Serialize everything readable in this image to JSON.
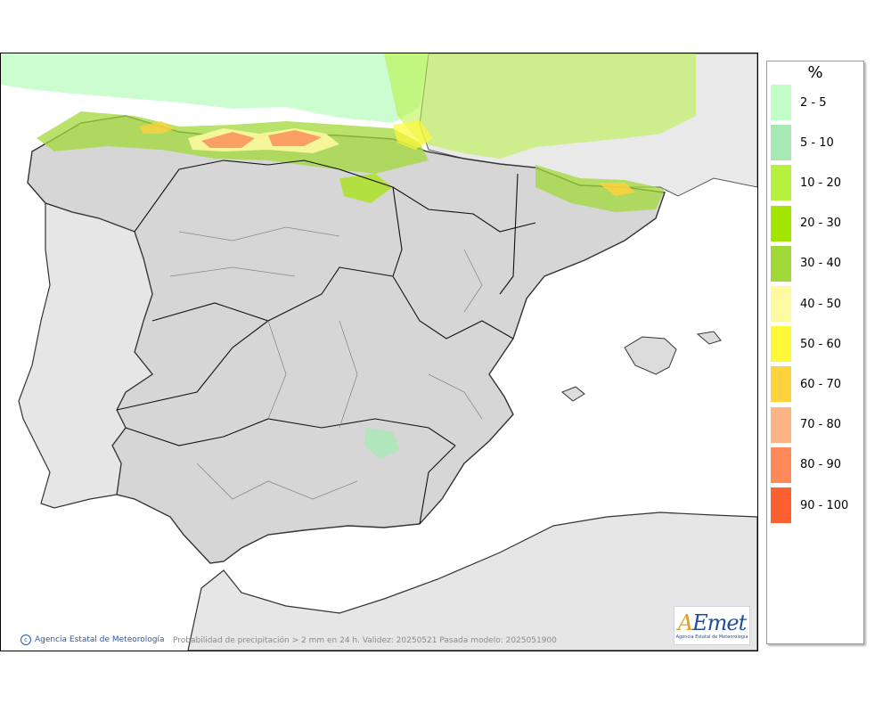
{
  "map": {
    "caption": "Probabilidad de precipitación > 2 mm en 24 h. Validez: 20250521 Pasada modelo: 2025051900",
    "credit": "Agencia Estatal de Meteorología",
    "logo": {
      "wordmark": "AEmet",
      "subtitle": "Agencia Estatal de Meteorología"
    },
    "land_color": "#d9d9d9",
    "sea_color": "#ffffff"
  },
  "legend": {
    "title": "%",
    "classes": [
      {
        "label": "2 - 5",
        "color": "#c3fdc8"
      },
      {
        "label": "5 - 10",
        "color": "#a8e8b4"
      },
      {
        "label": "10 - 20",
        "color": "#b8f040"
      },
      {
        "label": "20 - 30",
        "color": "#a3e400"
      },
      {
        "label": "30 - 40",
        "color": "#a0d838"
      },
      {
        "label": "40 - 50",
        "color": "#fdf9a0"
      },
      {
        "label": "50 - 60",
        "color": "#fdf838"
      },
      {
        "label": "60 - 70",
        "color": "#fdd23c"
      },
      {
        "label": "70 - 80",
        "color": "#fdb484"
      },
      {
        "label": "80 - 90",
        "color": "#fd8a58"
      },
      {
        "label": "90 - 100",
        "color": "#fd6030"
      }
    ]
  }
}
